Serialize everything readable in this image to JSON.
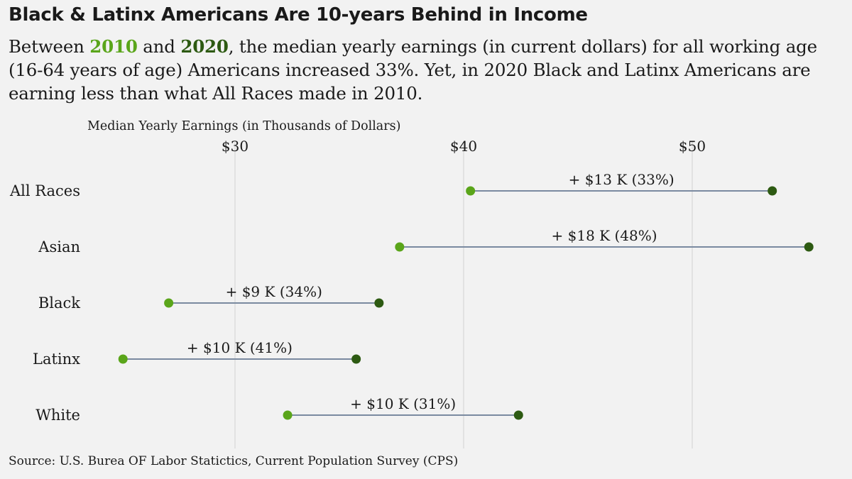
{
  "header": {
    "title": "Black & Latinx Americans Are 10-years Behind in Income",
    "subtitle_parts": {
      "p1": "Between ",
      "year_a": "2010",
      "p2": " and ",
      "year_b": "2020",
      "p3": ", the median yearly earnings (in current dollars) for all working age (16-64 years of age) Americans increased 33%. Yet, in 2020 Black and Latinx Americans are earning less than what All Races made in 2010."
    }
  },
  "source": "Source: U.S. Burea OF Labor Statictics, Current Population Survey (CPS)",
  "chart_data": {
    "type": "dumbbell",
    "title": "",
    "xlabel": "Median Yearly Earnings (in Thousands of Dollars)",
    "x_ticks": [
      30,
      40,
      50
    ],
    "x_tick_labels": [
      "$30",
      "$40",
      "$50"
    ],
    "xlim": [
      23,
      57
    ],
    "grid": true,
    "colors": {
      "2010": "#5aa51a",
      "2020": "#2d5a12",
      "connector": "#7a8aa0",
      "grid": "#dcdcdc"
    },
    "categories": [
      "All Races",
      "Asian",
      "Black",
      "Latinx",
      "White"
    ],
    "series": [
      {
        "name": "2010",
        "values": [
          40.3,
          37.2,
          27.1,
          25.1,
          32.3
        ]
      },
      {
        "name": "2020",
        "values": [
          53.5,
          55.1,
          36.3,
          35.3,
          42.4
        ]
      }
    ],
    "annotations": [
      "+ $13 K (33%)",
      "+ $18 K (48%)",
      "+ $9 K (34%)",
      "+ $10 K (41%)",
      "+ $10 K (31%)"
    ]
  }
}
